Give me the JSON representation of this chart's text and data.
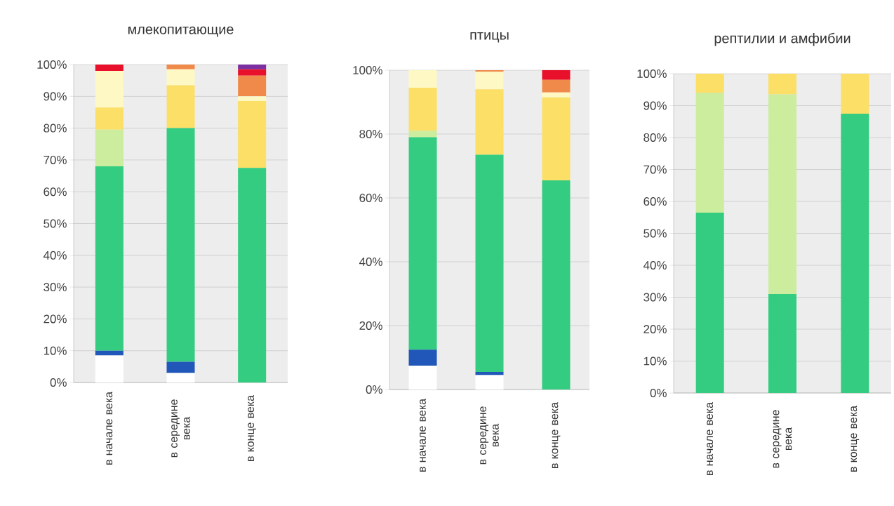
{
  "chart_data": [
    {
      "type": "bar",
      "stacked": true,
      "title": "млекопитающие",
      "categories": [
        "в начале века",
        "в середине века",
        "в конце века"
      ],
      "ylim": [
        0,
        100
      ],
      "grid": "y",
      "yticks": [
        {
          "value": 0,
          "label": "0%"
        },
        {
          "value": 10,
          "label": "10%"
        },
        {
          "value": 20,
          "label": "20%"
        },
        {
          "value": 30,
          "label": "30%"
        },
        {
          "value": 40,
          "label": "40%"
        },
        {
          "value": 50,
          "label": "50%"
        },
        {
          "value": 60,
          "label": "60%"
        },
        {
          "value": 70,
          "label": "70%"
        },
        {
          "value": 80,
          "label": "80%"
        },
        {
          "value": 90,
          "label": "90%"
        },
        {
          "value": 100,
          "label": "100%"
        }
      ],
      "series": [
        {
          "color": "#ffffff",
          "values": [
            8.5,
            3,
            0
          ]
        },
        {
          "color": "#2157b8",
          "values": [
            1.5,
            3.5,
            0
          ]
        },
        {
          "color": "#33cc80",
          "values": [
            58,
            73.5,
            67.5
          ]
        },
        {
          "color": "#ccec9e",
          "values": [
            11.5,
            0,
            0
          ]
        },
        {
          "color": "#fbdf66",
          "values": [
            7,
            13.5,
            21
          ]
        },
        {
          "color": "#fdf8c4",
          "values": [
            11.5,
            5,
            1.5
          ]
        },
        {
          "color": "#f08a4a",
          "values": [
            0,
            1.5,
            6.5
          ]
        },
        {
          "color": "#e8102a",
          "values": [
            2,
            0,
            2
          ]
        },
        {
          "color": "#7b2fa0",
          "values": [
            0,
            0,
            1.5
          ]
        }
      ]
    },
    {
      "type": "bar",
      "stacked": true,
      "title": "птицы",
      "categories": [
        "в начале века",
        "в середине века",
        "в конце века"
      ],
      "ylim": [
        0,
        100
      ],
      "grid": "y",
      "yticks": [
        {
          "value": 0,
          "label": "0%"
        },
        {
          "value": 20,
          "label": "20%"
        },
        {
          "value": 40,
          "label": "40%"
        },
        {
          "value": 60,
          "label": "60%"
        },
        {
          "value": 80,
          "label": "80%"
        },
        {
          "value": 100,
          "label": "100%"
        }
      ],
      "series": [
        {
          "color": "#ffffff",
          "values": [
            7.5,
            4.5,
            0
          ]
        },
        {
          "color": "#2157b8",
          "values": [
            5,
            1,
            0
          ]
        },
        {
          "color": "#33cc80",
          "values": [
            66.5,
            68,
            65.5
          ]
        },
        {
          "color": "#ccec9e",
          "values": [
            2,
            0,
            0
          ]
        },
        {
          "color": "#fbdf66",
          "values": [
            13.5,
            20.5,
            26
          ]
        },
        {
          "color": "#fdf8c4",
          "values": [
            5.5,
            5.5,
            1.5
          ]
        },
        {
          "color": "#f08a4a",
          "values": [
            0,
            0.5,
            4
          ]
        },
        {
          "color": "#e8102a",
          "values": [
            0,
            0,
            3
          ]
        }
      ]
    },
    {
      "type": "bar",
      "stacked": true,
      "title": "рептилии и амфибии",
      "categories": [
        "в начале века",
        "в середине века",
        "в конце века"
      ],
      "ylim": [
        0,
        100
      ],
      "grid": "y",
      "yticks": [
        {
          "value": 0,
          "label": "0%"
        },
        {
          "value": 10,
          "label": "10%"
        },
        {
          "value": 20,
          "label": "20%"
        },
        {
          "value": 30,
          "label": "30%"
        },
        {
          "value": 40,
          "label": "40%"
        },
        {
          "value": 50,
          "label": "50%"
        },
        {
          "value": 60,
          "label": "60%"
        },
        {
          "value": 70,
          "label": "70%"
        },
        {
          "value": 80,
          "label": "80%"
        },
        {
          "value": 90,
          "label": "90%"
        },
        {
          "value": 100,
          "label": "100%"
        }
      ],
      "series": [
        {
          "color": "#33cc80",
          "values": [
            56.5,
            31,
            87.5
          ]
        },
        {
          "color": "#ccec9e",
          "values": [
            37.5,
            62.5,
            0
          ]
        },
        {
          "color": "#fbdf66",
          "values": [
            6,
            6.5,
            12.5
          ]
        }
      ]
    }
  ]
}
